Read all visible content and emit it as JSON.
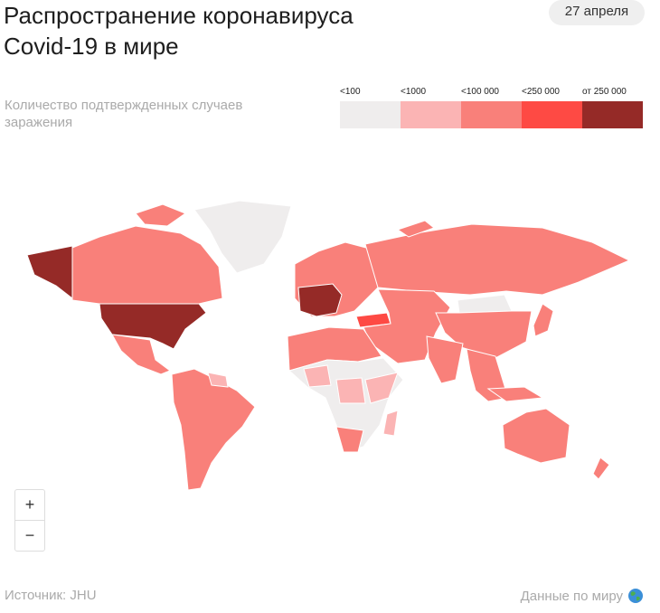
{
  "header": {
    "title_lines": [
      "Распространение коронавируса",
      "Covid-19 в мире"
    ],
    "date": "27 апреля"
  },
  "subtitle": "Количество подтвержденных случаев заражения",
  "legend": {
    "items": [
      {
        "label": "<100",
        "color": "#efeded"
      },
      {
        "label": "<1000",
        "color": "#fbb4b4"
      },
      {
        "label": "<100 000",
        "color": "#f9807a"
      },
      {
        "label": "<250 000",
        "color": "#fe4a44"
      },
      {
        "label": "от 250 000",
        "color": "#952a27"
      }
    ]
  },
  "zoom": {
    "in": "+",
    "out": "−"
  },
  "footer": {
    "source": "Источник: JHU",
    "link": "Данные по миру"
  }
}
